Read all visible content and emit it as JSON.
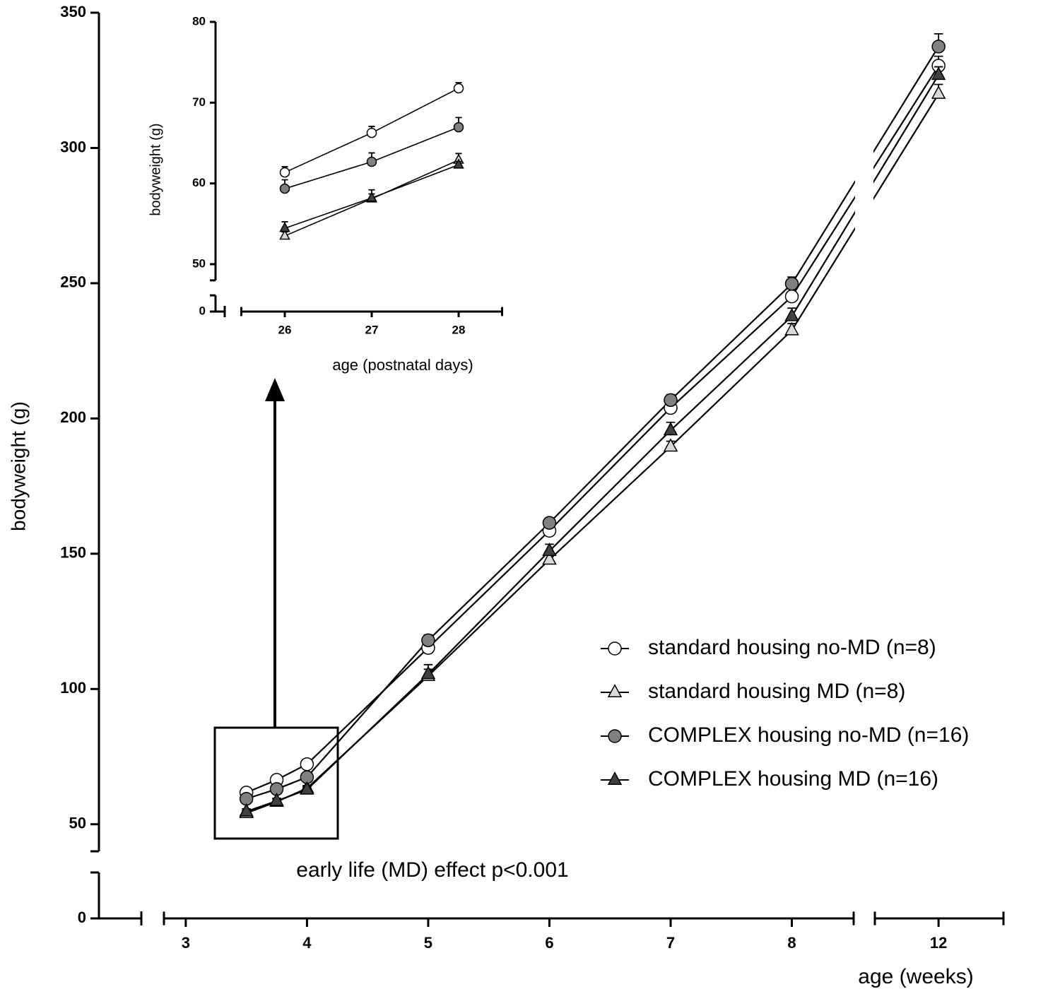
{
  "chart_data": [
    {
      "type": "line",
      "xlabel": "age (weeks)",
      "ylabel": "bodyweight (g)",
      "annotation": "early life (MD) effect p<0.001",
      "x": [
        3.5,
        3.75,
        4,
        5,
        6,
        7,
        8,
        12
      ],
      "xlim": [
        [
          2.82,
          8.51
        ],
        [
          11.47,
          12.54
        ]
      ],
      "xticks": [
        3,
        4,
        5,
        6,
        7,
        8,
        12
      ],
      "ylim": [
        [
          0,
          17
        ],
        [
          40,
          350
        ]
      ],
      "yticks": [
        0,
        50,
        100,
        150,
        200,
        250,
        300,
        350
      ],
      "legend": "lower right",
      "series": [
        {
          "name": "standard housing no-MD (n=8)",
          "color": "#ffffff",
          "marker": "circle",
          "values": [
            61.7,
            66.4,
            72.2,
            115.2,
            158.5,
            203.9,
            245.1,
            330.4
          ],
          "errors": [
            1,
            1,
            1,
            2,
            2,
            2,
            3,
            3.5
          ]
        },
        {
          "name": "standard housing MD (n=8)",
          "color": "#d9d9d9",
          "marker": "triangle",
          "values": [
            54.1,
            58.3,
            63.3,
            104.8,
            147.8,
            189.6,
            232.6,
            320
          ],
          "errors": [
            1,
            1,
            1,
            2.5,
            2,
            2,
            2.5,
            3.5
          ]
        },
        {
          "name": "COMPLEX housing no-MD (n=16)",
          "color": "#808080",
          "marker": "circle",
          "values": [
            59.4,
            63,
            67.4,
            118,
            161.4,
            206.8,
            249.8,
            337.5
          ],
          "errors": [
            1,
            1,
            1,
            2,
            1.5,
            2,
            2.5,
            4.7
          ]
        },
        {
          "name": "COMPLEX housing MD (n=16)",
          "color": "#404040",
          "marker": "triangle",
          "values": [
            54.7,
            58.6,
            62.8,
            105.5,
            151,
            195.6,
            237.8,
            327
          ],
          "errors": [
            1,
            1,
            1,
            3.5,
            2.5,
            3,
            3,
            3
          ]
        }
      ]
    },
    {
      "type": "line",
      "xlabel": "age (postnatal days)",
      "ylabel": "bodyweight (g)",
      "x": [
        26,
        27,
        28
      ],
      "xlim": [
        [
          25.5,
          28.5
        ]
      ],
      "xticks": [
        26,
        27,
        28
      ],
      "ylim": [
        [
          0,
          2
        ],
        [
          48,
          80
        ]
      ],
      "yticks": [
        0,
        50,
        60,
        70,
        80
      ],
      "series": [
        {
          "color": "#ffffff",
          "marker": "circle",
          "values": [
            61.36,
            66.26,
            71.78
          ],
          "errors": [
            0.7,
            0.8,
            0.7
          ]
        },
        {
          "color": "#d9d9d9",
          "marker": "triangle",
          "values": [
            53.5,
            58.1,
            62.9
          ],
          "errors": [
            0.5,
            0.6,
            0.8
          ]
        },
        {
          "color": "#808080",
          "marker": "circle",
          "values": [
            59.35,
            62.68,
            66.96
          ],
          "errors": [
            1.1,
            1.1,
            1.2
          ]
        },
        {
          "color": "#404040",
          "marker": "triangle",
          "values": [
            54.45,
            58.2,
            62.3
          ],
          "errors": [
            0.8,
            1,
            0.4
          ]
        }
      ]
    }
  ]
}
